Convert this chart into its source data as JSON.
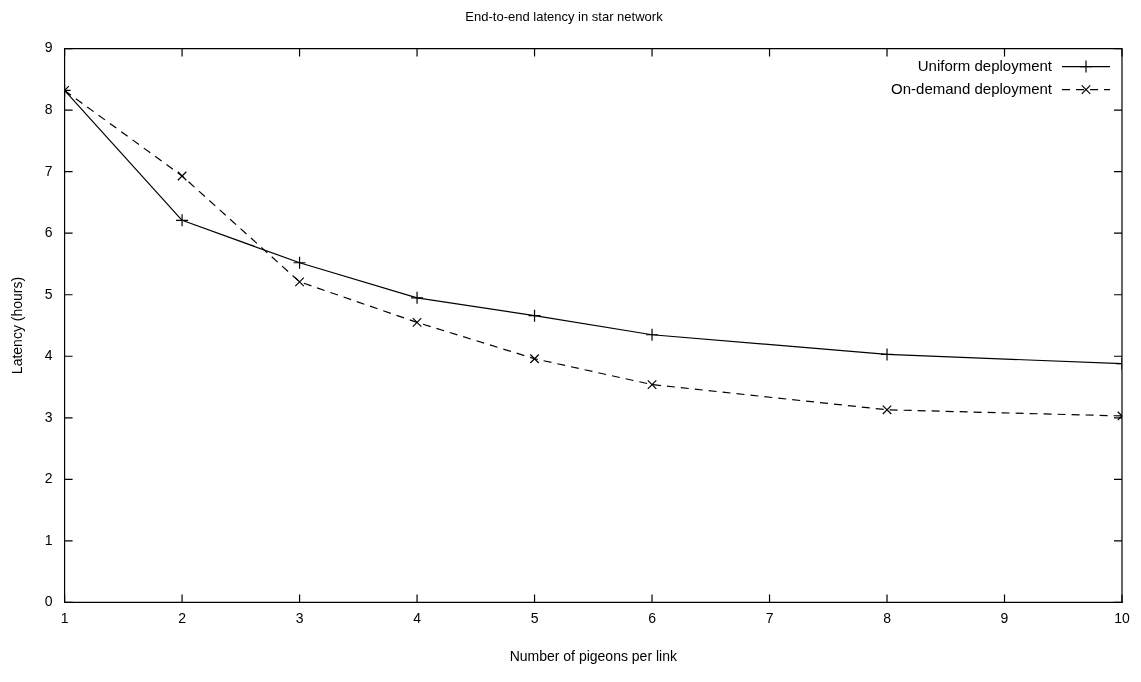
{
  "chart_data": {
    "type": "line",
    "title": "End-to-end latency in star network",
    "xlabel": "Number of pigeons per link",
    "ylabel": "Latency (hours)",
    "xlim": [
      1,
      10
    ],
    "xticks": [
      1,
      2,
      3,
      4,
      5,
      6,
      7,
      8,
      9,
      10
    ],
    "ylim": [
      0,
      9
    ],
    "yticks": [
      0,
      1,
      2,
      3,
      4,
      5,
      6,
      7,
      8,
      9
    ],
    "grid": false,
    "legend": "top right",
    "series": [
      {
        "name": "Uniform deployment",
        "color": "#000000",
        "marker": "cross",
        "line_style": "solid",
        "x": [
          1,
          2,
          3,
          4,
          5,
          6,
          8,
          10
        ],
        "values": [
          8.32,
          6.21,
          5.52,
          4.95,
          4.66,
          4.35,
          4.03,
          3.88
        ]
      },
      {
        "name": "On-demand deployment",
        "color": "#000000",
        "marker": "cross",
        "line_style": "dashed",
        "x": [
          1,
          2,
          3,
          4,
          5,
          6,
          8,
          10
        ],
        "values": [
          8.32,
          6.93,
          5.21,
          4.55,
          3.96,
          3.54,
          3.13,
          3.03
        ]
      }
    ]
  }
}
